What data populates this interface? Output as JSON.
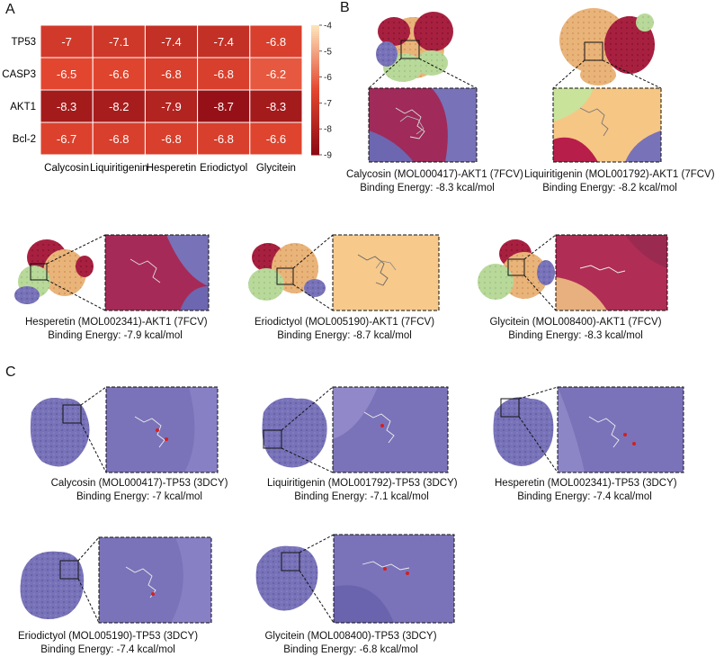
{
  "panels": {
    "a": "A",
    "b": "B",
    "c": "C"
  },
  "chart_data": {
    "type": "heatmap",
    "rows": [
      "TP53",
      "CASP3",
      "AKT1",
      "Bcl-2"
    ],
    "columns": [
      "Calycosin",
      "Liquiritigenin",
      "Hesperetin",
      "Eriodictyol",
      "Glycitein"
    ],
    "values": [
      [
        -7,
        -7.1,
        -7.4,
        -7.4,
        -6.8
      ],
      [
        -6.5,
        -6.6,
        -6.8,
        -6.8,
        -6.2
      ],
      [
        -8.3,
        -8.2,
        -7.9,
        -8.7,
        -8.3
      ],
      [
        -6.7,
        -6.8,
        -6.8,
        -6.8,
        -6.6
      ]
    ],
    "value_labels": [
      [
        "-7",
        "-7.1",
        "-7.4",
        "-7.4",
        "-6.8"
      ],
      [
        "-6.5",
        "-6.6",
        "-6.8",
        "-6.8",
        "-6.2"
      ],
      [
        "-8.3",
        "-8.2",
        "-7.9",
        "-8.7",
        "-8.3"
      ],
      [
        "-6.7",
        "-6.8",
        "-6.8",
        "-6.8",
        "-6.6"
      ]
    ],
    "colorbar": {
      "range": [
        -9,
        -4
      ],
      "ticks": [
        "-4",
        "-5",
        "-6",
        "-7",
        "-8",
        "-9"
      ]
    },
    "colors": {
      "low": "#8b0a14",
      "mid": "#e3462f",
      "high": "#fde6bd"
    }
  },
  "b_panels": [
    {
      "name": "calycosin-akt1",
      "line1": "Calycosin (MOL000417)-AKT1 (7FCV)",
      "line2": "Binding Energy: -8.3 kcal/mol"
    },
    {
      "name": "liquiritigenin-akt1",
      "line1": "Liquiritigenin (MOL001792)-AKT1 (7FCV)",
      "line2": "Binding Energy: -8.2 kcal/mol"
    },
    {
      "name": "hesperetin-akt1",
      "line1": "Hesperetin (MOL002341)-AKT1 (7FCV)",
      "line2": "Binding Energy: -7.9 kcal/mol"
    },
    {
      "name": "eriodictyol-akt1",
      "line1": "Eriodictyol (MOL005190)-AKT1 (7FCV)",
      "line2": "Binding Energy: -8.7 kcal/mol"
    },
    {
      "name": "glycitein-akt1",
      "line1": "Glycitein (MOL008400)-AKT1 (7FCV)",
      "line2": "Binding Energy: -8.3 kcal/mol"
    }
  ],
  "c_panels": [
    {
      "name": "calycosin-tp53",
      "line1": "Calycosin (MOL000417)-TP53 (3DCY)",
      "line2": "Binding Energy: -7 kcal/mol"
    },
    {
      "name": "liquiritigenin-tp53",
      "line1": "Liquiritigenin (MOL001792)-TP53 (3DCY)",
      "line2": "Binding Energy: -7.1 kcal/mol"
    },
    {
      "name": "hesperetin-tp53",
      "line1": "Hesperetin (MOL002341)-TP53 (3DCY)",
      "line2": "Binding Energy: -7.4 kcal/mol"
    },
    {
      "name": "eriodictyol-tp53",
      "line1": "Eriodictyol (MOL005190)-TP53 (3DCY)",
      "line2": "Binding Energy: -7.4 kcal/mol"
    },
    {
      "name": "glycitein-tp53",
      "line1": "Glycitein (MOL008400)-TP53 (3DCY)",
      "line2": "Binding Energy: -6.8 kcal/mol"
    }
  ]
}
